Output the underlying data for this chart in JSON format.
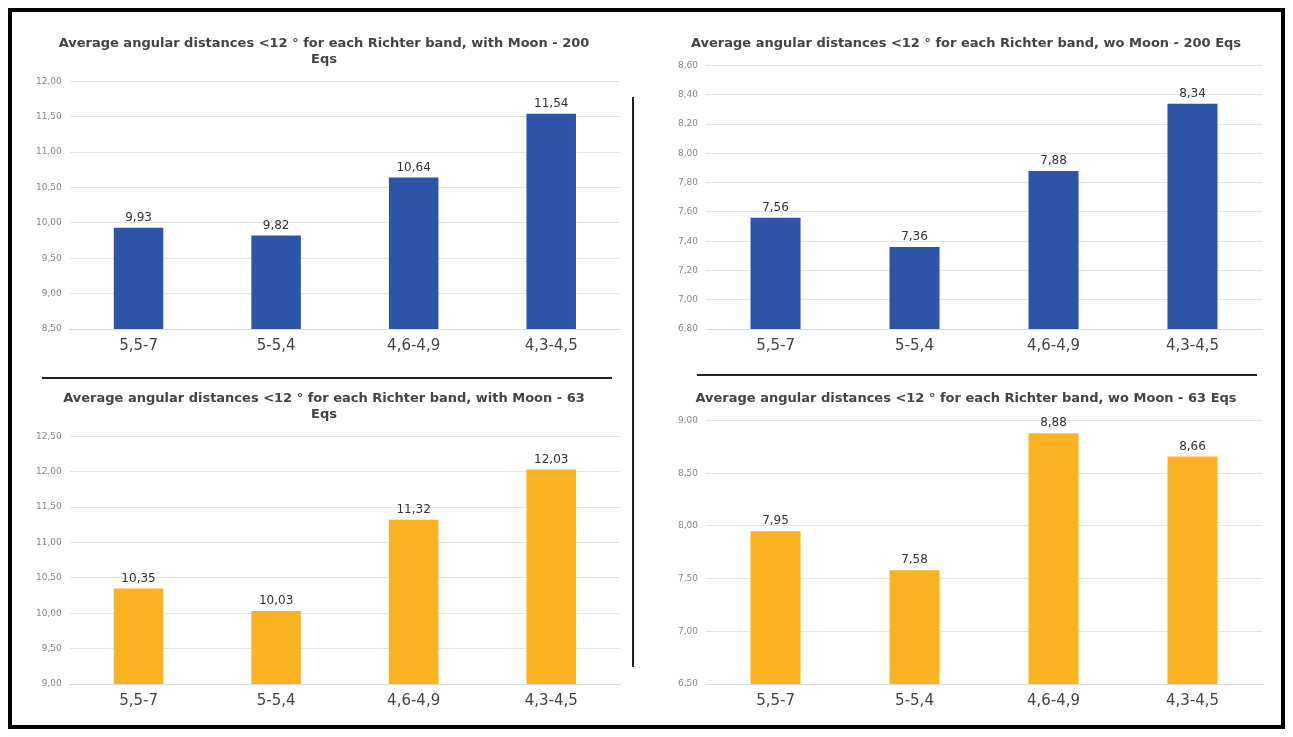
{
  "chart_data": [
    {
      "type": "bar",
      "title": "Average angular distances <12 ° for each Richter band, with Moon - 200 Eqs",
      "categories": [
        "5,5-7",
        "5-5,4",
        "4,6-4,9",
        "4,3-4,5"
      ],
      "values": [
        9.93,
        9.82,
        10.64,
        11.54
      ],
      "value_labels": [
        "9,93",
        "9,82",
        "10,64",
        "11,54"
      ],
      "color": "#2e54a8",
      "ylim": [
        8.5,
        12
      ],
      "yticks": [
        {
          "value": 8.5,
          "label": "8,50"
        },
        {
          "value": 9,
          "label": "9,00"
        },
        {
          "value": 9.5,
          "label": "9,50"
        },
        {
          "value": 10,
          "label": "10,00"
        },
        {
          "value": 10.5,
          "label": "10,50"
        },
        {
          "value": 11,
          "label": "11,00"
        },
        {
          "value": 11.5,
          "label": "11,50"
        },
        {
          "value": 12,
          "label": "12,00"
        }
      ],
      "grid": "y"
    },
    {
      "type": "bar",
      "title": "Average angular distances <12 ° for each Richter band, wo Moon - 200 Eqs",
      "categories": [
        "5,5-7",
        "5-5,4",
        "4,6-4,9",
        "4,3-4,5"
      ],
      "values": [
        7.56,
        7.36,
        7.88,
        8.34
      ],
      "value_labels": [
        "7,56",
        "7,36",
        "7,88",
        "8,34"
      ],
      "color": "#2e54a8",
      "ylim": [
        6.8,
        8.6
      ],
      "yticks": [
        {
          "value": 6.8,
          "label": "6,80"
        },
        {
          "value": 7,
          "label": "7,00"
        },
        {
          "value": 7.2,
          "label": "7,20"
        },
        {
          "value": 7.4,
          "label": "7,40"
        },
        {
          "value": 7.6,
          "label": "7,60"
        },
        {
          "value": 7.8,
          "label": "7,80"
        },
        {
          "value": 8,
          "label": "8,00"
        },
        {
          "value": 8.2,
          "label": "8,20"
        },
        {
          "value": 8.4,
          "label": "8,40"
        },
        {
          "value": 8.6,
          "label": "8,60"
        }
      ],
      "grid": "y"
    },
    {
      "type": "bar",
      "title": "Average angular distances <12 ° for each Richter band, with Moon - 63 Eqs",
      "categories": [
        "5,5-7",
        "5-5,4",
        "4,6-4,9",
        "4,3-4,5"
      ],
      "values": [
        10.35,
        10.03,
        11.32,
        12.03
      ],
      "value_labels": [
        "10,35",
        "10,03",
        "11,32",
        "12,03"
      ],
      "color": "#fbb324",
      "ylim": [
        9,
        12.5
      ],
      "yticks": [
        {
          "value": 9,
          "label": "9,00"
        },
        {
          "value": 9.5,
          "label": "9,50"
        },
        {
          "value": 10,
          "label": "10,00"
        },
        {
          "value": 10.5,
          "label": "10,50"
        },
        {
          "value": 11,
          "label": "11,00"
        },
        {
          "value": 11.5,
          "label": "11,50"
        },
        {
          "value": 12,
          "label": "12,00"
        },
        {
          "value": 12.5,
          "label": "12,50"
        }
      ],
      "grid": "y"
    },
    {
      "type": "bar",
      "title": "Average angular distances <12 ° for each Richter band, wo Moon - 63 Eqs",
      "categories": [
        "5,5-7",
        "5-5,4",
        "4,6-4,9",
        "4,3-4,5"
      ],
      "values": [
        7.95,
        7.58,
        8.88,
        8.66
      ],
      "value_labels": [
        "7,95",
        "7,58",
        "8,88",
        "8,66"
      ],
      "color": "#fbb324",
      "ylim": [
        6.5,
        9
      ],
      "yticks": [
        {
          "value": 6.5,
          "label": "6,50"
        },
        {
          "value": 7,
          "label": "7,00"
        },
        {
          "value": 7.5,
          "label": "7,50"
        },
        {
          "value": 8,
          "label": "8,00"
        },
        {
          "value": 8.5,
          "label": "8,50"
        },
        {
          "value": 9,
          "label": "9,00"
        }
      ],
      "grid": "y"
    }
  ]
}
